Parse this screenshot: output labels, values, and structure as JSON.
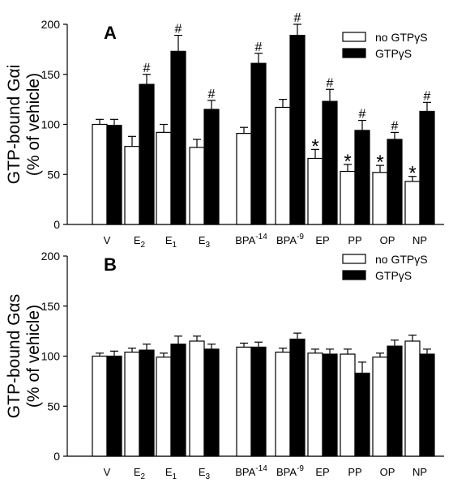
{
  "chart_data": [
    {
      "type": "bar",
      "panel_label": "A",
      "ylabel_line1": "GTP-bound Gαi",
      "ylabel_line2": "(% of vehicle)",
      "categories": [
        {
          "base": "V",
          "sub": "",
          "sup": ""
        },
        {
          "base": "E",
          "sub": "2",
          "sup": ""
        },
        {
          "base": "E",
          "sub": "1",
          "sup": ""
        },
        {
          "base": "E",
          "sub": "3",
          "sup": ""
        },
        {
          "base": "BPA",
          "sub": "",
          "sup": "-14"
        },
        {
          "base": "BPA",
          "sub": "",
          "sup": "-9"
        },
        {
          "base": "EP",
          "sub": "",
          "sup": ""
        },
        {
          "base": "PP",
          "sub": "",
          "sup": ""
        },
        {
          "base": "OP",
          "sub": "",
          "sup": ""
        },
        {
          "base": "NP",
          "sub": "",
          "sup": ""
        }
      ],
      "ylim": [
        0,
        200
      ],
      "yticks": [
        0,
        50,
        100,
        150,
        200
      ],
      "series": [
        {
          "name": "no GTPγS",
          "color": "#ffffff",
          "values": [
            100,
            78,
            92,
            77,
            91,
            117,
            66,
            53,
            52,
            43
          ],
          "errors": [
            5,
            10,
            8,
            8,
            6,
            8,
            9,
            7,
            7,
            5
          ],
          "marks": [
            "",
            "",
            "",
            "",
            "",
            "",
            "*",
            "*",
            "*",
            "*"
          ]
        },
        {
          "name": "GTPγS",
          "color": "#000000",
          "values": [
            99,
            140,
            173,
            115,
            161,
            189,
            123,
            94,
            85,
            113
          ],
          "errors": [
            6,
            10,
            16,
            9,
            10,
            11,
            12,
            10,
            7,
            9
          ],
          "marks": [
            "",
            "#",
            "#",
            "#",
            "#",
            "#",
            "#",
            "#",
            "#",
            "#"
          ]
        }
      ]
    },
    {
      "type": "bar",
      "panel_label": "B",
      "ylabel_line1": "GTP-bound Gαs",
      "ylabel_line2": "(% of vehicle)",
      "categories": [
        {
          "base": "V",
          "sub": "",
          "sup": ""
        },
        {
          "base": "E",
          "sub": "2",
          "sup": ""
        },
        {
          "base": "E",
          "sub": "1",
          "sup": ""
        },
        {
          "base": "E",
          "sub": "3",
          "sup": ""
        },
        {
          "base": "BPA",
          "sub": "",
          "sup": "-14"
        },
        {
          "base": "BPA",
          "sub": "",
          "sup": "-9"
        },
        {
          "base": "EP",
          "sub": "",
          "sup": ""
        },
        {
          "base": "PP",
          "sub": "",
          "sup": ""
        },
        {
          "base": "OP",
          "sub": "",
          "sup": ""
        },
        {
          "base": "NP",
          "sub": "",
          "sup": ""
        }
      ],
      "ylim": [
        0,
        200
      ],
      "yticks": [
        0,
        50,
        100,
        150,
        200
      ],
      "series": [
        {
          "name": "no GTPγS",
          "color": "#ffffff",
          "values": [
            100,
            104,
            99,
            115,
            109,
            104,
            103,
            102,
            99,
            115
          ],
          "errors": [
            3,
            4,
            4,
            5,
            4,
            4,
            4,
            5,
            4,
            6
          ],
          "marks": [
            "",
            "",
            "",
            "",
            "",
            "",
            "",
            "",
            "",
            ""
          ]
        },
        {
          "name": "GTPγS",
          "color": "#000000",
          "values": [
            100,
            106,
            112,
            107,
            109,
            117,
            102,
            83,
            110,
            102
          ],
          "errors": [
            5,
            6,
            8,
            5,
            5,
            6,
            5,
            11,
            6,
            5
          ],
          "marks": [
            "",
            "",
            "",
            "",
            "",
            "",
            "",
            "",
            "",
            ""
          ]
        }
      ]
    }
  ]
}
